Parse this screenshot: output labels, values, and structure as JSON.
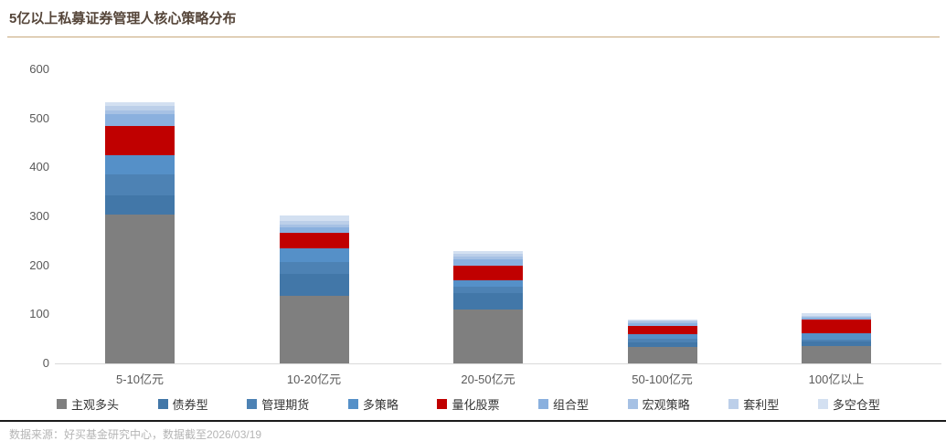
{
  "header": {
    "title": "5亿以上私募证券管理人核心策略分布"
  },
  "footer": {
    "source_text": "数据来源：好买基金研究中心，数据截至2026/03/19"
  },
  "colors": {
    "title_text": "#554539",
    "title_rule": "#c8a87c",
    "axis_text": "#595959",
    "baseline": "#d9d9d9",
    "legend_text": "#333333",
    "footer_text": "#b5b5b5",
    "footer_rule": "#1a1a1a",
    "accent_red": "#c00000"
  },
  "chart_data": {
    "type": "bar",
    "stacked": true,
    "title": "5亿以上私募证券管理人核心策略分布",
    "xlabel": "",
    "ylabel": "",
    "ylim": [
      0,
      600
    ],
    "yticks": [
      0,
      100,
      200,
      300,
      400,
      500,
      600
    ],
    "grid": false,
    "legend_position": "bottom",
    "categories": [
      "5-10亿元",
      "10-20亿元",
      "20-50亿元",
      "50-100亿元",
      "100亿以上"
    ],
    "series": [
      {
        "name": "主观多头",
        "color": "#7f7f7f",
        "values": [
          304,
          137,
          110,
          34,
          35
        ]
      },
      {
        "name": "债券型",
        "color": "#4277a8",
        "values": [
          39,
          46,
          33,
          9,
          10
        ]
      },
      {
        "name": "管理期货",
        "color": "#4d82b4",
        "values": [
          43,
          24,
          13,
          8,
          4
        ]
      },
      {
        "name": "多策略",
        "color": "#5590c8",
        "values": [
          39,
          28,
          13,
          8,
          12
        ]
      },
      {
        "name": "量化股票",
        "color": "#c00000",
        "values": [
          60,
          31,
          30,
          18,
          28
        ]
      },
      {
        "name": "组合型",
        "color": "#8ab0de",
        "values": [
          24,
          11,
          13,
          6,
          4
        ]
      },
      {
        "name": "宏观策略",
        "color": "#a6c1e4",
        "values": [
          7,
          7,
          6,
          3,
          2
        ]
      },
      {
        "name": "套利型",
        "color": "#bccfe9",
        "values": [
          9,
          7,
          5,
          2,
          2
        ]
      },
      {
        "name": "多空仓型",
        "color": "#d3e0f1",
        "values": [
          8,
          11,
          6,
          2,
          5
        ]
      }
    ]
  }
}
